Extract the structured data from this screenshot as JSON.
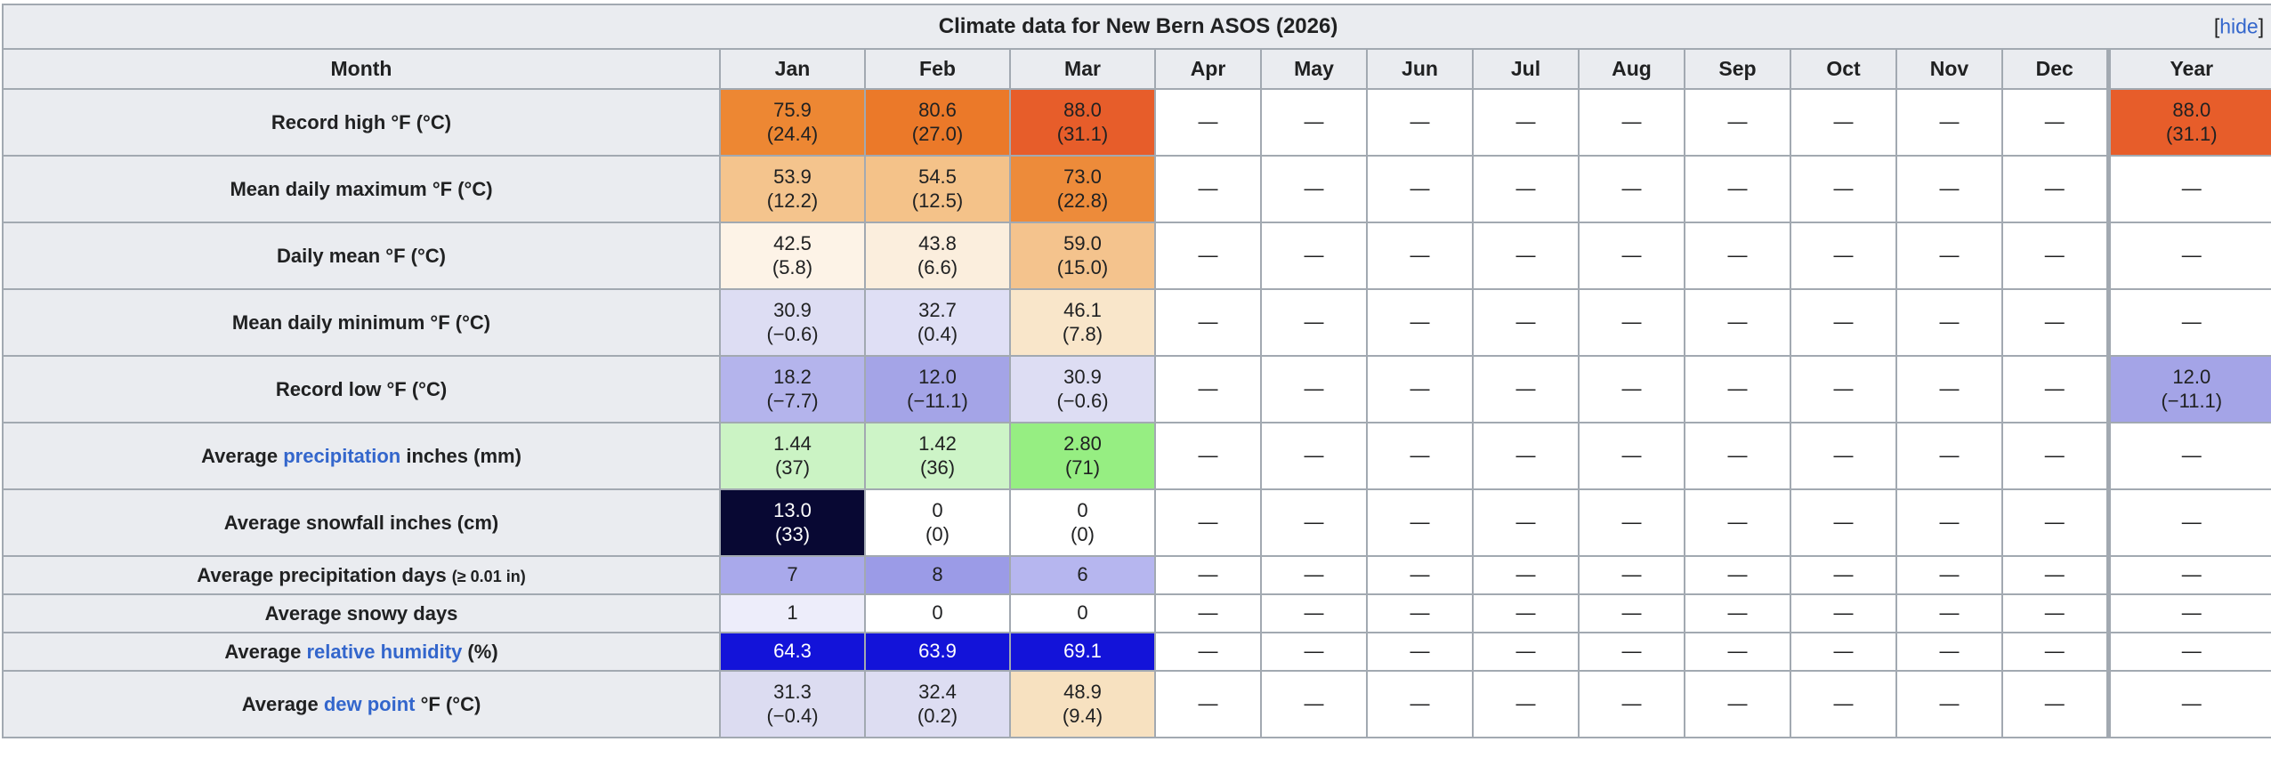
{
  "table": {
    "title": "Climate data for New Bern ASOS (2026)",
    "toggle": {
      "prefix": "[",
      "label": "hide",
      "suffix": "]"
    },
    "header": {
      "month_label": "Month",
      "months": [
        "Jan",
        "Feb",
        "Mar",
        "Apr",
        "May",
        "Jun",
        "Jul",
        "Aug",
        "Sep",
        "Oct",
        "Nov",
        "Dec"
      ],
      "year_label": "Year"
    },
    "empty_cell_glyph": "—",
    "colors": {
      "header_bg": "#eaecf0",
      "border": "#a2a9b1",
      "link_blue": "#3366cc",
      "text": "#202122"
    },
    "rows": [
      {
        "h": "tall",
        "label": [
          {
            "text": "Record high °F (°C)"
          }
        ],
        "cells": [
          {
            "v": "75.9",
            "s": "(24.4)",
            "bg": "#ed8733"
          },
          {
            "v": "80.6",
            "s": "(27.0)",
            "bg": "#eb7929"
          },
          {
            "v": "88.0",
            "s": "(31.1)",
            "bg": "#e75d2a"
          },
          {
            "v": "—"
          },
          {
            "v": "—"
          },
          {
            "v": "—"
          },
          {
            "v": "—"
          },
          {
            "v": "—"
          },
          {
            "v": "—"
          },
          {
            "v": "—"
          },
          {
            "v": "—"
          },
          {
            "v": "—"
          },
          {
            "v": "88.0",
            "s": "(31.1)",
            "bg": "#e75d2a"
          }
        ]
      },
      {
        "h": "tall",
        "label": [
          {
            "text": "Mean daily maximum °F (°C)"
          }
        ],
        "cells": [
          {
            "v": "53.9",
            "s": "(12.2)",
            "bg": "#f4c48d"
          },
          {
            "v": "54.5",
            "s": "(12.5)",
            "bg": "#f4c289"
          },
          {
            "v": "73.0",
            "s": "(22.8)",
            "bg": "#ed8b3a"
          },
          {
            "v": "—"
          },
          {
            "v": "—"
          },
          {
            "v": "—"
          },
          {
            "v": "—"
          },
          {
            "v": "—"
          },
          {
            "v": "—"
          },
          {
            "v": "—"
          },
          {
            "v": "—"
          },
          {
            "v": "—"
          },
          {
            "v": "—"
          }
        ]
      },
      {
        "h": "tall",
        "label": [
          {
            "text": "Daily mean °F (°C)"
          }
        ],
        "cells": [
          {
            "v": "42.5",
            "s": "(5.8)",
            "bg": "#fdf3e7"
          },
          {
            "v": "43.8",
            "s": "(6.6)",
            "bg": "#fbeedd"
          },
          {
            "v": "59.0",
            "s": "(15.0)",
            "bg": "#f4c38d"
          },
          {
            "v": "—"
          },
          {
            "v": "—"
          },
          {
            "v": "—"
          },
          {
            "v": "—"
          },
          {
            "v": "—"
          },
          {
            "v": "—"
          },
          {
            "v": "—"
          },
          {
            "v": "—"
          },
          {
            "v": "—"
          },
          {
            "v": "—"
          }
        ]
      },
      {
        "h": "tall",
        "label": [
          {
            "text": "Mean daily minimum °F (°C)"
          }
        ],
        "cells": [
          {
            "v": "30.9",
            "s": "(−0.6)",
            "bg": "#ddddf3"
          },
          {
            "v": "32.7",
            "s": "(0.4)",
            "bg": "#dfdff5"
          },
          {
            "v": "46.1",
            "s": "(7.8)",
            "bg": "#f9e6ca"
          },
          {
            "v": "—"
          },
          {
            "v": "—"
          },
          {
            "v": "—"
          },
          {
            "v": "—"
          },
          {
            "v": "—"
          },
          {
            "v": "—"
          },
          {
            "v": "—"
          },
          {
            "v": "—"
          },
          {
            "v": "—"
          },
          {
            "v": "—"
          }
        ]
      },
      {
        "h": "tall",
        "label": [
          {
            "text": "Record low °F (°C)"
          }
        ],
        "cells": [
          {
            "v": "18.2",
            "s": "(−7.7)",
            "bg": "#b4b4ec"
          },
          {
            "v": "12.0",
            "s": "(−11.1)",
            "bg": "#a4a4e7"
          },
          {
            "v": "30.9",
            "s": "(−0.6)",
            "bg": "#ddddf3"
          },
          {
            "v": "—"
          },
          {
            "v": "—"
          },
          {
            "v": "—"
          },
          {
            "v": "—"
          },
          {
            "v": "—"
          },
          {
            "v": "—"
          },
          {
            "v": "—"
          },
          {
            "v": "—"
          },
          {
            "v": "—"
          },
          {
            "v": "12.0",
            "s": "(−11.1)",
            "bg": "#a4a4e7"
          }
        ]
      },
      {
        "h": "tall",
        "label": [
          {
            "text": "Average "
          },
          {
            "text": "precipitation",
            "link": true
          },
          {
            "text": " inches (mm)"
          }
        ],
        "cells": [
          {
            "v": "1.44",
            "s": "(37)",
            "bg": "#cbf3c4"
          },
          {
            "v": "1.42",
            "s": "(36)",
            "bg": "#cdf4c7"
          },
          {
            "v": "2.80",
            "s": "(71)",
            "bg": "#96ee82"
          },
          {
            "v": "—"
          },
          {
            "v": "—"
          },
          {
            "v": "—"
          },
          {
            "v": "—"
          },
          {
            "v": "—"
          },
          {
            "v": "—"
          },
          {
            "v": "—"
          },
          {
            "v": "—"
          },
          {
            "v": "—"
          },
          {
            "v": "—"
          }
        ]
      },
      {
        "h": "tall",
        "label": [
          {
            "text": "Average snowfall inches (cm)"
          }
        ],
        "cells": [
          {
            "v": "13.0",
            "s": "(33)",
            "bg": "#080833",
            "fg": "#ffffff"
          },
          {
            "v": "0",
            "s": "(0)",
            "bg": "#ffffff"
          },
          {
            "v": "0",
            "s": "(0)",
            "bg": "#ffffff"
          },
          {
            "v": "—"
          },
          {
            "v": "—"
          },
          {
            "v": "—"
          },
          {
            "v": "—"
          },
          {
            "v": "—"
          },
          {
            "v": "—"
          },
          {
            "v": "—"
          },
          {
            "v": "—"
          },
          {
            "v": "—"
          },
          {
            "v": "—"
          }
        ]
      },
      {
        "h": "short",
        "label": [
          {
            "text": "Average precipitation days "
          },
          {
            "text": "(≥ 0.01 in)",
            "small": true
          }
        ],
        "cells": [
          {
            "v": "7",
            "bg": "#a9a9eb"
          },
          {
            "v": "8",
            "bg": "#9b9be7"
          },
          {
            "v": "6",
            "bg": "#b6b6ef"
          },
          {
            "v": "—"
          },
          {
            "v": "—"
          },
          {
            "v": "—"
          },
          {
            "v": "—"
          },
          {
            "v": "—"
          },
          {
            "v": "—"
          },
          {
            "v": "—"
          },
          {
            "v": "—"
          },
          {
            "v": "—"
          },
          {
            "v": "—"
          }
        ]
      },
      {
        "h": "short",
        "label": [
          {
            "text": "Average snowy days"
          }
        ],
        "cells": [
          {
            "v": "1",
            "bg": "#ededfa"
          },
          {
            "v": "0",
            "bg": "#ffffff"
          },
          {
            "v": "0",
            "bg": "#ffffff"
          },
          {
            "v": "—"
          },
          {
            "v": "—"
          },
          {
            "v": "—"
          },
          {
            "v": "—"
          },
          {
            "v": "—"
          },
          {
            "v": "—"
          },
          {
            "v": "—"
          },
          {
            "v": "—"
          },
          {
            "v": "—"
          },
          {
            "v": "—"
          }
        ]
      },
      {
        "h": "short",
        "label": [
          {
            "text": "Average "
          },
          {
            "text": "relative humidity",
            "link": true
          },
          {
            "text": " (%)"
          }
        ],
        "cells": [
          {
            "v": "64.3",
            "bg": "#1313d9",
            "fg": "#ffffff"
          },
          {
            "v": "63.9",
            "bg": "#1313d9",
            "fg": "#ffffff"
          },
          {
            "v": "69.1",
            "bg": "#1313d9",
            "fg": "#ffffff"
          },
          {
            "v": "—"
          },
          {
            "v": "—"
          },
          {
            "v": "—"
          },
          {
            "v": "—"
          },
          {
            "v": "—"
          },
          {
            "v": "—"
          },
          {
            "v": "—"
          },
          {
            "v": "—"
          },
          {
            "v": "—"
          },
          {
            "v": "—"
          }
        ]
      },
      {
        "h": "tall",
        "label": [
          {
            "text": "Average "
          },
          {
            "text": "dew point",
            "link": true
          },
          {
            "text": " °F (°C)"
          }
        ],
        "cells": [
          {
            "v": "31.3",
            "s": "(−0.4)",
            "bg": "#dcdcf1"
          },
          {
            "v": "32.4",
            "s": "(0.2)",
            "bg": "#ddddf2"
          },
          {
            "v": "48.9",
            "s": "(9.4)",
            "bg": "#f7e1c0"
          },
          {
            "v": "—"
          },
          {
            "v": "—"
          },
          {
            "v": "—"
          },
          {
            "v": "—"
          },
          {
            "v": "—"
          },
          {
            "v": "—"
          },
          {
            "v": "—"
          },
          {
            "v": "—"
          },
          {
            "v": "—"
          },
          {
            "v": "—"
          }
        ]
      }
    ]
  }
}
